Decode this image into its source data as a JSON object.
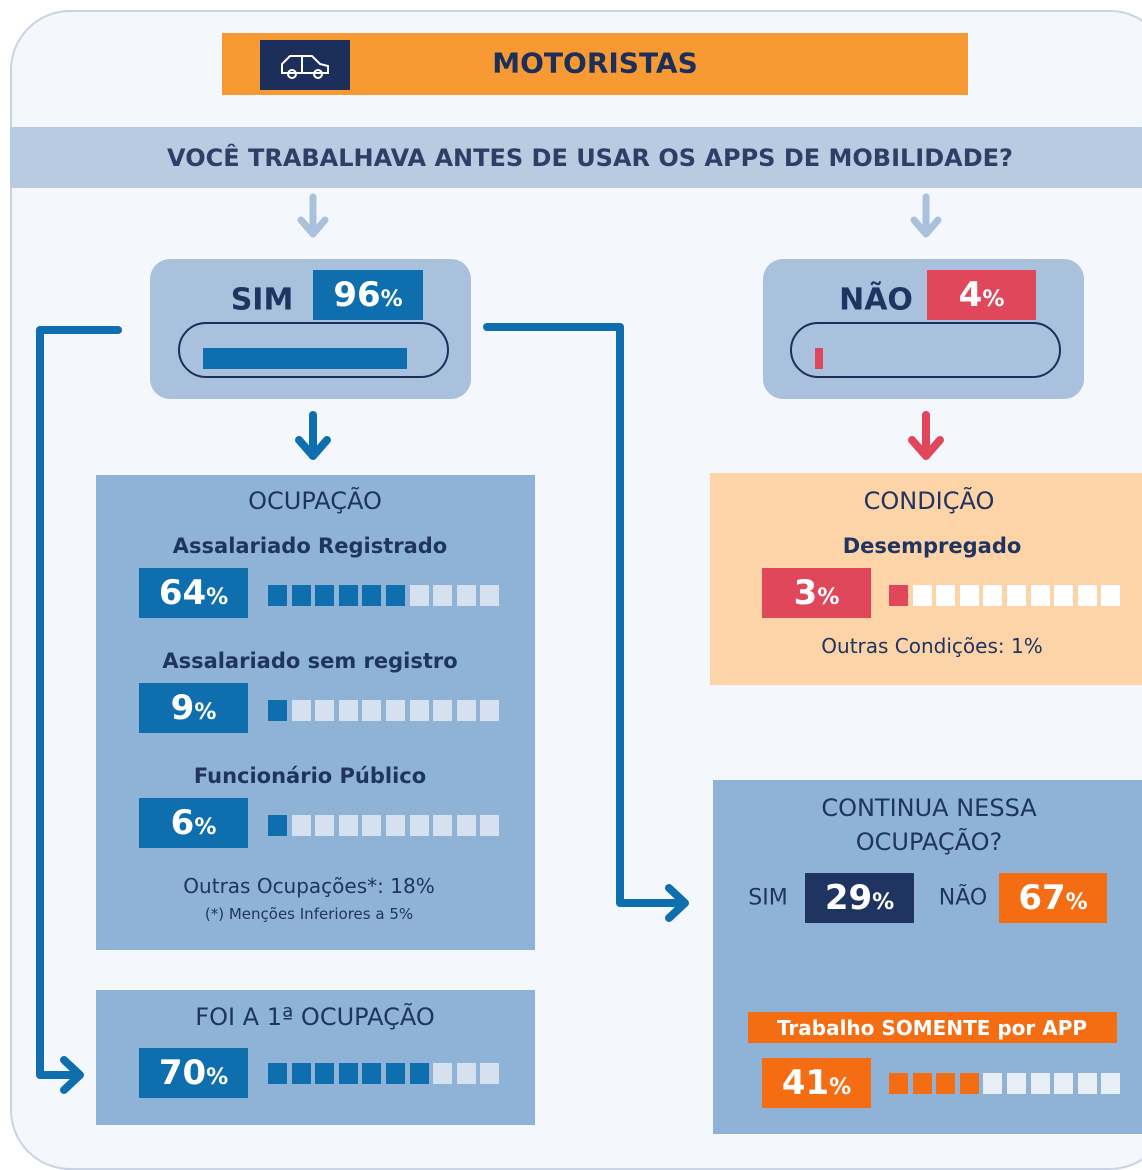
{
  "header": {
    "title": "MOTORISTAS"
  },
  "question": "VOCÊ TRABALHAVA ANTES DE USAR OS APPS DE MOBILIDADE?",
  "answers": [
    {
      "label": "SIM",
      "value": 96,
      "unit": "%"
    },
    {
      "label": "NÃO",
      "value": 4,
      "unit": "%"
    }
  ],
  "occupation": {
    "title": "OCUPAÇÃO",
    "items": [
      {
        "label": "Assalariado Registrado",
        "value": 64,
        "unit": "%"
      },
      {
        "label": "Assalariado sem registro",
        "value": 9,
        "unit": "%"
      },
      {
        "label": "Funcionário Público",
        "value": 6,
        "unit": "%"
      }
    ],
    "other": "Outras Ocupações*: 18%",
    "note": "(*) Menções Inferiores a 5%"
  },
  "condition": {
    "title": "CONDIÇÃO",
    "items": [
      {
        "label": "Desempregado",
        "value": 3,
        "unit": "%"
      }
    ],
    "other": "Outras Condições: 1%"
  },
  "first_occupation": {
    "title": "FOI A 1ª OCUPAÇÃO",
    "value": 70,
    "unit": "%"
  },
  "continues": {
    "title_lines": [
      "CONTINUA NESSA",
      "OCUPAÇÃO?"
    ],
    "answers": [
      {
        "label": "SIM",
        "value": 29,
        "unit": "%"
      },
      {
        "label": "NÃO",
        "value": 67,
        "unit": "%"
      }
    ],
    "sub_title": "Trabalho SOMENTE por APP",
    "sub": {
      "value": 41,
      "unit": "%"
    }
  }
}
